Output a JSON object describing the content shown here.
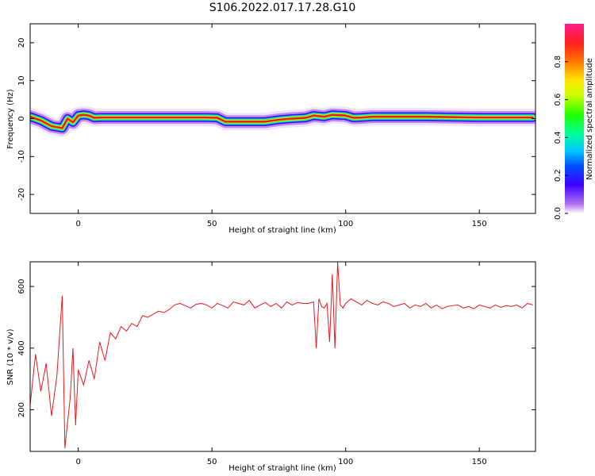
{
  "title": "S106.2022.017.17.28.G10",
  "colors": {
    "line": "#e8191e",
    "ridge": "#e8191e",
    "axis": "#000000"
  },
  "chart_data": [
    {
      "type": "heatmap",
      "xlabel": "Height of straight line (km)",
      "ylabel": "Frequency (Hz)",
      "xlim": [
        -18,
        171
      ],
      "ylim": [
        -25,
        25
      ],
      "x_ticks": [
        0,
        50,
        100,
        150
      ],
      "y_ticks": [
        20,
        10,
        0,
        -10,
        -20
      ],
      "colorbar": {
        "label": "Normalized spectral amplitude",
        "ticks": [
          0.0,
          0.2,
          0.4,
          0.6,
          0.8
        ],
        "range": [
          0,
          1
        ]
      },
      "ridge": {
        "x": [
          -18,
          -14,
          -10,
          -6,
          -4,
          -2,
          0,
          2,
          4,
          6,
          8,
          20,
          30,
          40,
          48,
          52,
          55,
          60,
          65,
          70,
          75,
          80,
          85,
          88,
          92,
          95,
          100,
          103,
          106,
          110,
          120,
          130,
          140,
          150,
          160,
          170
        ],
        "y": [
          0.5,
          -0.5,
          -2.0,
          -2.5,
          0.0,
          -1.0,
          0.8,
          1.0,
          0.8,
          0.2,
          0.3,
          0.3,
          0.3,
          0.3,
          0.3,
          0.2,
          -0.8,
          -0.8,
          -0.8,
          -0.8,
          -0.3,
          0.0,
          0.2,
          0.8,
          0.5,
          1.0,
          0.8,
          0.2,
          0.3,
          0.5,
          0.5,
          0.5,
          0.4,
          0.3,
          0.3,
          0.3
        ]
      }
    },
    {
      "type": "line",
      "xlabel": "Height of straight line (km)",
      "ylabel": "SNR (10 * v/v)",
      "xlim": [
        -18,
        171
      ],
      "ylim": [
        65,
        680
      ],
      "x_ticks": [
        0,
        50,
        100,
        150
      ],
      "y_ticks": [
        600,
        400,
        200
      ],
      "series": [
        {
          "x": [
            -18,
            -16,
            -14,
            -12,
            -10,
            -8,
            -6,
            -5,
            -4,
            -3,
            -2,
            -1,
            0,
            2,
            4,
            6,
            8,
            10,
            12,
            14,
            16,
            18,
            20,
            22,
            24,
            26,
            28,
            30,
            32,
            34,
            36,
            38,
            40,
            42,
            44,
            46,
            48,
            50,
            52,
            54,
            56,
            58,
            60,
            62,
            64,
            66,
            68,
            70,
            72,
            74,
            76,
            78,
            80,
            82,
            84,
            86,
            88,
            89,
            90,
            91,
            92,
            93,
            94,
            95,
            96,
            97,
            98,
            99,
            100,
            102,
            104,
            106,
            108,
            110,
            112,
            114,
            116,
            118,
            120,
            122,
            124,
            126,
            128,
            130,
            132,
            134,
            136,
            138,
            140,
            142,
            144,
            146,
            148,
            150,
            152,
            154,
            156,
            158,
            160,
            162,
            164,
            166,
            168,
            170
          ],
          "y": [
            215,
            380,
            260,
            350,
            180,
            310,
            570,
            75,
            160,
            240,
            400,
            150,
            330,
            280,
            360,
            300,
            420,
            360,
            450,
            430,
            470,
            455,
            480,
            470,
            505,
            500,
            510,
            520,
            515,
            525,
            540,
            545,
            538,
            530,
            542,
            545,
            540,
            530,
            545,
            538,
            530,
            550,
            545,
            540,
            555,
            530,
            540,
            548,
            535,
            545,
            530,
            550,
            540,
            548,
            545,
            545,
            550,
            400,
            560,
            535,
            530,
            545,
            420,
            640,
            400,
            680,
            540,
            530,
            545,
            560,
            550,
            540,
            555,
            545,
            540,
            550,
            545,
            535,
            540,
            545,
            530,
            540,
            535,
            545,
            530,
            540,
            528,
            535,
            538,
            540,
            530,
            535,
            528,
            540,
            535,
            530,
            540,
            532,
            538,
            535,
            540,
            530,
            545,
            540
          ]
        }
      ]
    }
  ]
}
